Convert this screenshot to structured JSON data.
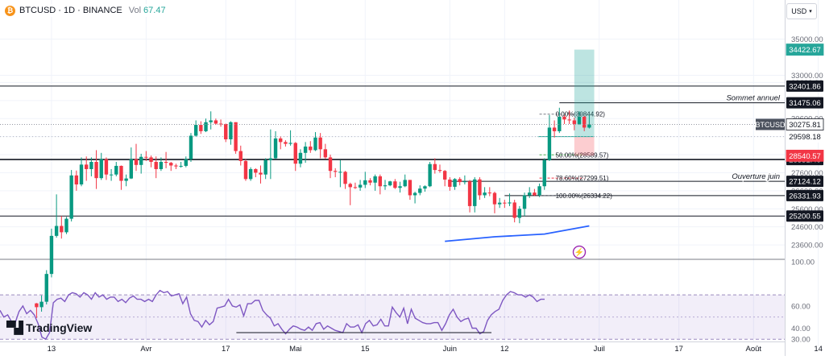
{
  "header": {
    "symbol": "BTCUSD · 1D · BINANCE",
    "vol_label": "Vol",
    "vol_value": "67.47",
    "logo_glyph": "₿"
  },
  "currency_selector": {
    "value": "USD"
  },
  "branding": {
    "name": "TradingView"
  },
  "colors": {
    "up": "#089981",
    "down": "#f23645",
    "rsi_line": "#7e57c2",
    "ma_line": "#2962ff",
    "target_zone": "#26a69a",
    "stop_zone": "#f23645",
    "price_tag": "#4c525e"
  },
  "chart_data": {
    "type": "candlestick",
    "symbol": "BTCUSD",
    "timeframe": "1D",
    "exchange": "BINANCE",
    "price_ylim": [
      22800,
      36100
    ],
    "price_ticks": [
      23600,
      24600,
      25600,
      26600,
      27600,
      28600,
      29600,
      30600,
      31600,
      32600,
      33000,
      35000
    ],
    "x_labels": [
      {
        "label": "13",
        "date": "2023-03-13"
      },
      {
        "label": "Avr",
        "date": "2023-04-01"
      },
      {
        "label": "17",
        "date": "2023-04-17"
      },
      {
        "label": "Mai",
        "date": "2023-05-01"
      },
      {
        "label": "15",
        "date": "2023-05-15"
      },
      {
        "label": "Juin",
        "date": "2023-06-01"
      },
      {
        "label": "12",
        "date": "2023-06-12"
      },
      {
        "label": "Juil",
        "date": "2023-07-01"
      },
      {
        "label": "17",
        "date": "2023-07-17"
      },
      {
        "label": "Août",
        "date": "2023-08-01"
      },
      {
        "label": "14",
        "date": "2023-08-14"
      }
    ],
    "horizontal_levels": [
      {
        "price": 32401.86,
        "label": "32401.86",
        "text": ""
      },
      {
        "price": 31475.06,
        "label": "31475.06",
        "text": "Sommet annuel"
      },
      {
        "price": 28331.4,
        "label": "28331.40",
        "text": ""
      },
      {
        "price": 27124.12,
        "label": "27124.12",
        "text": "Ouverture juin"
      },
      {
        "price": 26331.93,
        "label": "26331.93",
        "text": ""
      },
      {
        "price": 25200.55,
        "label": "25200.55",
        "text": ""
      }
    ],
    "price_tags": [
      {
        "price": 34422.67,
        "label": "34422.67",
        "style": "target"
      },
      {
        "price": 30275.81,
        "label": "30275.81",
        "style": "current",
        "name": "BTCUSD"
      },
      {
        "price": 29598.18,
        "label": "29598.18",
        "style": "plain"
      },
      {
        "price": 28540.57,
        "label": "28540.57",
        "style": "stop"
      }
    ],
    "fibonacci": [
      {
        "level": "0.00%",
        "price": 30844.92,
        "label": "0.00%(30844.92)"
      },
      {
        "level": "50.00%",
        "price": 28589.57,
        "label": "50.00%(28589.57)"
      },
      {
        "level": "78.60%",
        "price": 27299.51,
        "label": "78.60%(27299.51)"
      },
      {
        "level": "100.00%",
        "price": 26334.22,
        "label": "100.00%(26334.22)"
      }
    ],
    "position": {
      "entry": 29598.18,
      "target": 34422.67,
      "stop": 28540.57,
      "start_date": "2023-06-26",
      "end_date": "2023-06-30"
    },
    "candles": [
      {
        "date": "2023-03-10",
        "o": 20360,
        "h": 20380,
        "l": 19550,
        "c": 20150
      },
      {
        "date": "2023-03-11",
        "o": 20150,
        "h": 20800,
        "l": 19900,
        "c": 20450
      },
      {
        "date": "2023-03-12",
        "o": 20450,
        "h": 22200,
        "l": 20300,
        "c": 21990
      },
      {
        "date": "2023-03-13",
        "o": 21990,
        "h": 24500,
        "l": 21800,
        "c": 24100
      },
      {
        "date": "2023-03-14",
        "o": 24100,
        "h": 26400,
        "l": 24000,
        "c": 24650
      },
      {
        "date": "2023-03-15",
        "o": 24650,
        "h": 25200,
        "l": 23950,
        "c": 24300
      },
      {
        "date": "2023-03-16",
        "o": 24300,
        "h": 25150,
        "l": 24200,
        "c": 25050
      },
      {
        "date": "2023-03-17",
        "o": 25050,
        "h": 27750,
        "l": 24900,
        "c": 27450
      },
      {
        "date": "2023-03-18",
        "o": 27450,
        "h": 27720,
        "l": 26600,
        "c": 26950
      },
      {
        "date": "2023-03-19",
        "o": 26950,
        "h": 28450,
        "l": 26850,
        "c": 28050
      },
      {
        "date": "2023-03-20",
        "o": 28050,
        "h": 28500,
        "l": 27150,
        "c": 27800
      },
      {
        "date": "2023-03-21",
        "o": 27800,
        "h": 28450,
        "l": 27400,
        "c": 28200
      },
      {
        "date": "2023-03-22",
        "o": 28200,
        "h": 28850,
        "l": 26700,
        "c": 27300
      },
      {
        "date": "2023-03-23",
        "o": 27300,
        "h": 28700,
        "l": 27200,
        "c": 28350
      },
      {
        "date": "2023-03-24",
        "o": 28350,
        "h": 28450,
        "l": 27200,
        "c": 27500
      },
      {
        "date": "2023-03-25",
        "o": 27500,
        "h": 27800,
        "l": 27150,
        "c": 27500
      },
      {
        "date": "2023-03-26",
        "o": 27500,
        "h": 28200,
        "l": 27400,
        "c": 27980
      },
      {
        "date": "2023-03-27",
        "o": 27980,
        "h": 28000,
        "l": 26650,
        "c": 27150
      },
      {
        "date": "2023-03-28",
        "o": 27150,
        "h": 27500,
        "l": 26850,
        "c": 27280
      },
      {
        "date": "2023-03-29",
        "o": 27280,
        "h": 29000,
        "l": 27250,
        "c": 28350
      },
      {
        "date": "2023-03-30",
        "o": 28350,
        "h": 29200,
        "l": 27700,
        "c": 28030
      },
      {
        "date": "2023-03-31",
        "o": 28030,
        "h": 28650,
        "l": 27550,
        "c": 28480
      },
      {
        "date": "2023-04-01",
        "o": 28480,
        "h": 28800,
        "l": 28250,
        "c": 28450
      },
      {
        "date": "2023-04-02",
        "o": 28450,
        "h": 28550,
        "l": 27900,
        "c": 28200
      },
      {
        "date": "2023-04-03",
        "o": 28200,
        "h": 28500,
        "l": 27300,
        "c": 27800
      },
      {
        "date": "2023-04-04",
        "o": 27800,
        "h": 28450,
        "l": 27700,
        "c": 28200
      },
      {
        "date": "2023-04-05",
        "o": 28200,
        "h": 28750,
        "l": 27850,
        "c": 28150
      },
      {
        "date": "2023-04-06",
        "o": 28150,
        "h": 28200,
        "l": 27700,
        "c": 28000
      },
      {
        "date": "2023-04-07",
        "o": 28000,
        "h": 28100,
        "l": 27800,
        "c": 27950
      },
      {
        "date": "2023-04-08",
        "o": 27950,
        "h": 28200,
        "l": 27880,
        "c": 27980
      },
      {
        "date": "2023-04-09",
        "o": 27980,
        "h": 28500,
        "l": 27900,
        "c": 28350
      },
      {
        "date": "2023-04-10",
        "o": 28350,
        "h": 29800,
        "l": 28200,
        "c": 29650
      },
      {
        "date": "2023-04-11",
        "o": 29650,
        "h": 30500,
        "l": 29600,
        "c": 30250
      },
      {
        "date": "2023-04-12",
        "o": 30250,
        "h": 30450,
        "l": 29750,
        "c": 29900
      },
      {
        "date": "2023-04-13",
        "o": 29900,
        "h": 30600,
        "l": 29850,
        "c": 30400
      },
      {
        "date": "2023-04-14",
        "o": 30400,
        "h": 31000,
        "l": 30000,
        "c": 30500
      },
      {
        "date": "2023-04-15",
        "o": 30500,
        "h": 30600,
        "l": 30250,
        "c": 30320
      },
      {
        "date": "2023-04-16",
        "o": 30320,
        "h": 30550,
        "l": 30150,
        "c": 30300
      },
      {
        "date": "2023-04-17",
        "o": 30300,
        "h": 30320,
        "l": 29300,
        "c": 29450
      },
      {
        "date": "2023-04-18",
        "o": 29450,
        "h": 30450,
        "l": 29150,
        "c": 30400
      },
      {
        "date": "2023-04-19",
        "o": 30400,
        "h": 30400,
        "l": 28650,
        "c": 28800
      },
      {
        "date": "2023-04-20",
        "o": 28800,
        "h": 29100,
        "l": 28000,
        "c": 28250
      },
      {
        "date": "2023-04-21",
        "o": 28250,
        "h": 28350,
        "l": 27150,
        "c": 27250
      },
      {
        "date": "2023-04-22",
        "o": 27250,
        "h": 27900,
        "l": 27150,
        "c": 27800
      },
      {
        "date": "2023-04-23",
        "o": 27800,
        "h": 27850,
        "l": 27350,
        "c": 27600
      },
      {
        "date": "2023-04-24",
        "o": 27600,
        "h": 28000,
        "l": 27000,
        "c": 27500
      },
      {
        "date": "2023-04-25",
        "o": 27500,
        "h": 28400,
        "l": 27250,
        "c": 28300
      },
      {
        "date": "2023-04-26",
        "o": 28300,
        "h": 30000,
        "l": 27250,
        "c": 28400
      },
      {
        "date": "2023-04-27",
        "o": 28400,
        "h": 29900,
        "l": 28350,
        "c": 29500
      },
      {
        "date": "2023-04-28",
        "o": 29500,
        "h": 29600,
        "l": 28900,
        "c": 29300
      },
      {
        "date": "2023-04-29",
        "o": 29300,
        "h": 29400,
        "l": 29050,
        "c": 29200
      },
      {
        "date": "2023-04-30",
        "o": 29200,
        "h": 29950,
        "l": 29100,
        "c": 29250
      },
      {
        "date": "2023-05-01",
        "o": 29250,
        "h": 29300,
        "l": 27700,
        "c": 28100
      },
      {
        "date": "2023-05-02",
        "o": 28100,
        "h": 28900,
        "l": 27900,
        "c": 28700
      },
      {
        "date": "2023-05-03",
        "o": 28700,
        "h": 29300,
        "l": 28150,
        "c": 29050
      },
      {
        "date": "2023-05-04",
        "o": 29050,
        "h": 29350,
        "l": 28700,
        "c": 28850
      },
      {
        "date": "2023-05-05",
        "o": 28850,
        "h": 29850,
        "l": 28800,
        "c": 29550
      },
      {
        "date": "2023-05-06",
        "o": 29550,
        "h": 29800,
        "l": 28400,
        "c": 28900
      },
      {
        "date": "2023-05-07",
        "o": 28900,
        "h": 29200,
        "l": 28350,
        "c": 28450
      },
      {
        "date": "2023-05-08",
        "o": 28450,
        "h": 28600,
        "l": 27300,
        "c": 27700
      },
      {
        "date": "2023-05-09",
        "o": 27700,
        "h": 27850,
        "l": 27350,
        "c": 27650
      },
      {
        "date": "2023-05-10",
        "o": 27650,
        "h": 28300,
        "l": 26800,
        "c": 27650
      },
      {
        "date": "2023-05-11",
        "o": 27650,
        "h": 27700,
        "l": 26700,
        "c": 26980
      },
      {
        "date": "2023-05-12",
        "o": 26980,
        "h": 27050,
        "l": 25800,
        "c": 26800
      },
      {
        "date": "2023-05-13",
        "o": 26800,
        "h": 27050,
        "l": 26700,
        "c": 26780
      },
      {
        "date": "2023-05-14",
        "o": 26780,
        "h": 27200,
        "l": 26600,
        "c": 26930
      },
      {
        "date": "2023-05-15",
        "o": 26930,
        "h": 27650,
        "l": 26750,
        "c": 27180
      },
      {
        "date": "2023-05-16",
        "o": 27180,
        "h": 27300,
        "l": 26900,
        "c": 27050
      },
      {
        "date": "2023-05-17",
        "o": 27050,
        "h": 27500,
        "l": 26600,
        "c": 27400
      },
      {
        "date": "2023-05-18",
        "o": 27400,
        "h": 27500,
        "l": 26400,
        "c": 26850
      },
      {
        "date": "2023-05-19",
        "o": 26850,
        "h": 27200,
        "l": 26650,
        "c": 26900
      },
      {
        "date": "2023-05-20",
        "o": 26900,
        "h": 27150,
        "l": 26850,
        "c": 27120
      },
      {
        "date": "2023-05-21",
        "o": 27120,
        "h": 27250,
        "l": 26700,
        "c": 26760
      },
      {
        "date": "2023-05-22",
        "o": 26760,
        "h": 27100,
        "l": 26500,
        "c": 26850
      },
      {
        "date": "2023-05-23",
        "o": 26850,
        "h": 27500,
        "l": 26800,
        "c": 27200
      },
      {
        "date": "2023-05-24",
        "o": 27200,
        "h": 27200,
        "l": 26100,
        "c": 26350
      },
      {
        "date": "2023-05-25",
        "o": 26350,
        "h": 26550,
        "l": 25900,
        "c": 26480
      },
      {
        "date": "2023-05-26",
        "o": 26480,
        "h": 26900,
        "l": 26350,
        "c": 26720
      },
      {
        "date": "2023-05-27",
        "o": 26720,
        "h": 26900,
        "l": 26550,
        "c": 26850
      },
      {
        "date": "2023-05-28",
        "o": 26850,
        "h": 28200,
        "l": 26800,
        "c": 28080
      },
      {
        "date": "2023-05-29",
        "o": 28080,
        "h": 28400,
        "l": 27550,
        "c": 27750
      },
      {
        "date": "2023-05-30",
        "o": 27750,
        "h": 28050,
        "l": 27600,
        "c": 27700
      },
      {
        "date": "2023-05-31",
        "o": 27700,
        "h": 27750,
        "l": 26850,
        "c": 27220
      },
      {
        "date": "2023-06-01",
        "o": 27220,
        "h": 27350,
        "l": 26600,
        "c": 26820
      },
      {
        "date": "2023-06-02",
        "o": 26820,
        "h": 27300,
        "l": 26650,
        "c": 27250
      },
      {
        "date": "2023-06-03",
        "o": 27250,
        "h": 27350,
        "l": 26900,
        "c": 27080
      },
      {
        "date": "2023-06-04",
        "o": 27080,
        "h": 27450,
        "l": 26950,
        "c": 27120
      },
      {
        "date": "2023-06-05",
        "o": 27120,
        "h": 27200,
        "l": 25400,
        "c": 25750
      },
      {
        "date": "2023-06-06",
        "o": 25750,
        "h": 27350,
        "l": 25400,
        "c": 27230
      },
      {
        "date": "2023-06-07",
        "o": 27230,
        "h": 27350,
        "l": 26100,
        "c": 26350
      },
      {
        "date": "2023-06-08",
        "o": 26350,
        "h": 26800,
        "l": 26200,
        "c": 26500
      },
      {
        "date": "2023-06-09",
        "o": 26500,
        "h": 26800,
        "l": 26300,
        "c": 26480
      },
      {
        "date": "2023-06-10",
        "o": 26480,
        "h": 26550,
        "l": 25350,
        "c": 25850
      },
      {
        "date": "2023-06-11",
        "o": 25850,
        "h": 26200,
        "l": 25650,
        "c": 25940
      },
      {
        "date": "2023-06-12",
        "o": 25940,
        "h": 26100,
        "l": 25650,
        "c": 25900
      },
      {
        "date": "2023-06-13",
        "o": 25900,
        "h": 26450,
        "l": 25750,
        "c": 25950
      },
      {
        "date": "2023-06-14",
        "o": 25950,
        "h": 26100,
        "l": 24850,
        "c": 25100
      },
      {
        "date": "2023-06-15",
        "o": 25100,
        "h": 25750,
        "l": 24800,
        "c": 25600
      },
      {
        "date": "2023-06-16",
        "o": 25600,
        "h": 26500,
        "l": 25200,
        "c": 26350
      },
      {
        "date": "2023-06-17",
        "o": 26350,
        "h": 26800,
        "l": 26200,
        "c": 26500
      },
      {
        "date": "2023-06-18",
        "o": 26500,
        "h": 26700,
        "l": 26300,
        "c": 26350
      },
      {
        "date": "2023-06-19",
        "o": 26350,
        "h": 27000,
        "l": 26250,
        "c": 26850
      },
      {
        "date": "2023-06-20",
        "o": 26850,
        "h": 28400,
        "l": 26650,
        "c": 28300
      },
      {
        "date": "2023-06-21",
        "o": 28300,
        "h": 30800,
        "l": 28250,
        "c": 30100
      },
      {
        "date": "2023-06-22",
        "o": 30100,
        "h": 30500,
        "l": 29550,
        "c": 29900
      },
      {
        "date": "2023-06-23",
        "o": 29900,
        "h": 31200,
        "l": 29800,
        "c": 30700
      },
      {
        "date": "2023-06-24",
        "o": 30700,
        "h": 30800,
        "l": 30300,
        "c": 30550
      },
      {
        "date": "2023-06-25",
        "o": 30550,
        "h": 31050,
        "l": 30300,
        "c": 30500
      },
      {
        "date": "2023-06-26",
        "o": 30500,
        "h": 30650,
        "l": 29950,
        "c": 30300
      },
      {
        "date": "2023-06-27",
        "o": 30300,
        "h": 31000,
        "l": 30250,
        "c": 30700
      },
      {
        "date": "2023-06-28",
        "o": 30700,
        "h": 30750,
        "l": 29900,
        "c": 30100
      },
      {
        "date": "2023-06-29",
        "o": 30100,
        "h": 30800,
        "l": 30050,
        "c": 30275.81
      }
    ],
    "moving_average": {
      "points": [
        {
          "date": "2023-05-31",
          "value": 23800
        },
        {
          "date": "2023-06-10",
          "value": 24050
        },
        {
          "date": "2023-06-20",
          "value": 24200
        },
        {
          "date": "2023-06-29",
          "value": 24650
        }
      ]
    },
    "rsi": {
      "ylim": [
        28,
        102
      ],
      "ticks": [
        100.0,
        60.0,
        40.0,
        30.0
      ],
      "tick_labels": [
        "100.00",
        "60.00",
        "40.00",
        "30.00"
      ],
      "upper_band": 70,
      "lower_band": 30,
      "values": [
        56,
        50,
        52,
        46,
        45,
        55,
        60,
        53,
        56,
        52,
        44,
        32,
        30,
        36,
        63,
        66,
        67,
        64,
        70,
        72,
        71,
        68,
        72,
        70,
        66,
        72,
        68,
        70,
        66,
        68,
        68,
        64,
        66,
        63,
        67,
        69,
        66,
        66,
        64,
        66,
        64,
        70,
        74,
        72,
        73,
        69,
        70,
        71,
        62,
        68,
        53,
        47,
        46,
        41,
        47,
        43,
        46,
        58,
        59,
        60,
        66,
        60,
        59,
        61,
        51,
        62,
        62,
        65,
        65,
        56,
        52,
        49,
        42,
        44,
        39,
        35,
        39,
        42,
        41,
        39,
        38,
        41,
        38,
        44,
        45,
        39,
        42,
        40,
        38,
        37,
        36,
        44,
        41,
        41,
        43,
        36,
        44,
        47,
        42,
        43,
        48,
        42,
        42,
        59,
        54,
        50,
        58,
        44,
        57,
        49,
        47,
        45,
        44,
        44,
        45,
        45,
        38,
        44,
        52,
        57,
        50,
        46,
        48,
        49,
        40,
        40,
        35,
        37,
        47,
        52,
        55,
        57,
        65,
        70,
        73,
        72,
        70,
        70,
        68,
        70,
        68,
        64,
        66,
        66
      ],
      "support_from_index": 61,
      "support_to_index": 143,
      "support_value": 36
    }
  }
}
